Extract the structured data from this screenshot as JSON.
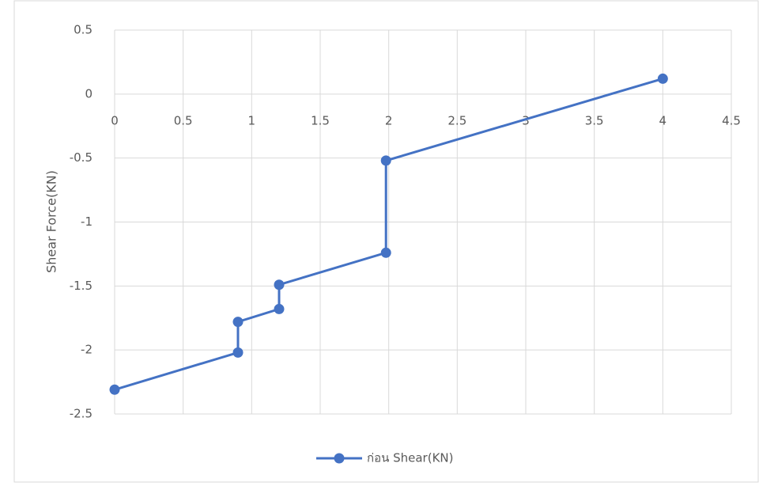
{
  "chart_data": {
    "type": "line",
    "y_label": "Shear Force(KN)",
    "x": [
      0,
      0.9,
      0.9,
      1.2,
      1.2,
      1.98,
      1.98,
      4
    ],
    "series": [
      {
        "name": "ก่อน Shear(KN)",
        "color": "#4472c4",
        "values": [
          -2.31,
          -2.02,
          -1.78,
          -1.68,
          -1.49,
          -1.24,
          -0.52,
          0.12
        ]
      }
    ],
    "xlim": [
      0,
      4.5
    ],
    "xticks": [
      0,
      0.5,
      1,
      1.5,
      2,
      2.5,
      3,
      3.5,
      4,
      4.5
    ],
    "ylim": [
      -2.5,
      0.5
    ],
    "yticks": [
      -2.5,
      -2,
      -1.5,
      -1,
      -0.5,
      0,
      0.5
    ],
    "grid": true,
    "legend": "bottom"
  }
}
